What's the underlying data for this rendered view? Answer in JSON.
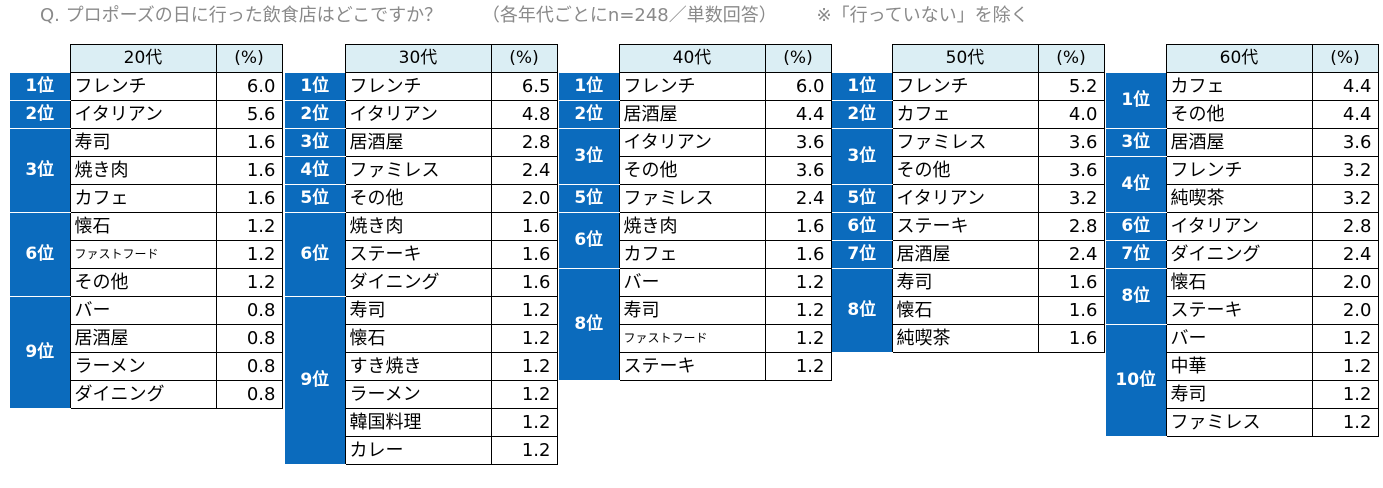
{
  "title": {
    "question": "Q. プロポーズの日に行った飲食店はどこですか？",
    "sample": "（各年代ごとにn=248／単数回答）",
    "note": "※「行っていない」を除く"
  },
  "percent_header": "(%)",
  "panels": [
    {
      "age": "20代",
      "rows": [
        {
          "rank": "1位",
          "span": 1,
          "name": "フレンチ",
          "value": "6.0"
        },
        {
          "rank": "2位",
          "span": 1,
          "name": "イタリアン",
          "value": "5.6"
        },
        {
          "rank": "3位",
          "span": 3,
          "name": "寿司",
          "value": "1.6"
        },
        {
          "name": "焼き肉",
          "value": "1.6"
        },
        {
          "name": "カフェ",
          "value": "1.6"
        },
        {
          "rank": "6位",
          "span": 3,
          "name": "懐石",
          "value": "1.2"
        },
        {
          "name": "ファストフード",
          "value": "1.2",
          "small": true
        },
        {
          "name": "その他",
          "value": "1.2"
        },
        {
          "rank": "9位",
          "span": 4,
          "name": "バー",
          "value": "0.8"
        },
        {
          "name": "居酒屋",
          "value": "0.8"
        },
        {
          "name": "ラーメン",
          "value": "0.8"
        },
        {
          "name": "ダイニング",
          "value": "0.8"
        }
      ]
    },
    {
      "age": "30代",
      "rows": [
        {
          "rank": "1位",
          "span": 1,
          "name": "フレンチ",
          "value": "6.5"
        },
        {
          "rank": "2位",
          "span": 1,
          "name": "イタリアン",
          "value": "4.8"
        },
        {
          "rank": "3位",
          "span": 1,
          "name": "居酒屋",
          "value": "2.8"
        },
        {
          "rank": "4位",
          "span": 1,
          "name": "ファミレス",
          "value": "2.4"
        },
        {
          "rank": "5位",
          "span": 1,
          "name": "その他",
          "value": "2.0"
        },
        {
          "rank": "6位",
          "span": 3,
          "name": "焼き肉",
          "value": "1.6"
        },
        {
          "name": "ステーキ",
          "value": "1.6"
        },
        {
          "name": "ダイニング",
          "value": "1.6"
        },
        {
          "rank": "9位",
          "span": 6,
          "name": "寿司",
          "value": "1.2"
        },
        {
          "name": "懐石",
          "value": "1.2"
        },
        {
          "name": "すき焼き",
          "value": "1.2"
        },
        {
          "name": "ラーメン",
          "value": "1.2"
        },
        {
          "name": "韓国料理",
          "value": "1.2"
        },
        {
          "name": "カレー",
          "value": "1.2"
        }
      ]
    },
    {
      "age": "40代",
      "rows": [
        {
          "rank": "1位",
          "span": 1,
          "name": "フレンチ",
          "value": "6.0"
        },
        {
          "rank": "2位",
          "span": 1,
          "name": "居酒屋",
          "value": "4.4"
        },
        {
          "rank": "3位",
          "span": 2,
          "name": "イタリアン",
          "value": "3.6"
        },
        {
          "name": "その他",
          "value": "3.6"
        },
        {
          "rank": "5位",
          "span": 1,
          "name": "ファミレス",
          "value": "2.4"
        },
        {
          "rank": "6位",
          "span": 2,
          "name": "焼き肉",
          "value": "1.6"
        },
        {
          "name": "カフェ",
          "value": "1.6"
        },
        {
          "rank": "8位",
          "span": 4,
          "name": "バー",
          "value": "1.2"
        },
        {
          "name": "寿司",
          "value": "1.2"
        },
        {
          "name": "ファストフード",
          "value": "1.2",
          "small": true
        },
        {
          "name": "ステーキ",
          "value": "1.2"
        }
      ]
    },
    {
      "age": "50代",
      "rows": [
        {
          "rank": "1位",
          "span": 1,
          "name": "フレンチ",
          "value": "5.2"
        },
        {
          "rank": "2位",
          "span": 1,
          "name": "カフェ",
          "value": "4.0"
        },
        {
          "rank": "3位",
          "span": 2,
          "name": "ファミレス",
          "value": "3.6"
        },
        {
          "name": "その他",
          "value": "3.6"
        },
        {
          "rank": "5位",
          "span": 1,
          "name": "イタリアン",
          "value": "3.2"
        },
        {
          "rank": "6位",
          "span": 1,
          "name": "ステーキ",
          "value": "2.8"
        },
        {
          "rank": "7位",
          "span": 1,
          "name": "居酒屋",
          "value": "2.4"
        },
        {
          "rank": "8位",
          "span": 3,
          "name": "寿司",
          "value": "1.6"
        },
        {
          "name": "懐石",
          "value": "1.6"
        },
        {
          "name": "純喫茶",
          "value": "1.6"
        }
      ]
    },
    {
      "age": "60代",
      "rows": [
        {
          "rank": "1位",
          "span": 2,
          "name": "カフェ",
          "value": "4.4"
        },
        {
          "name": "その他",
          "value": "4.4"
        },
        {
          "rank": "3位",
          "span": 1,
          "name": "居酒屋",
          "value": "3.6"
        },
        {
          "rank": "4位",
          "span": 2,
          "name": "フレンチ",
          "value": "3.2"
        },
        {
          "name": "純喫茶",
          "value": "3.2"
        },
        {
          "rank": "6位",
          "span": 1,
          "name": "イタリアン",
          "value": "2.8"
        },
        {
          "rank": "7位",
          "span": 1,
          "name": "ダイニング",
          "value": "2.4"
        },
        {
          "rank": "8位",
          "span": 2,
          "name": "懐石",
          "value": "2.0"
        },
        {
          "name": "ステーキ",
          "value": "2.0"
        },
        {
          "rank": "10位",
          "span": 4,
          "name": "バー",
          "value": "1.2"
        },
        {
          "name": "中華",
          "value": "1.2"
        },
        {
          "name": "寿司",
          "value": "1.2"
        },
        {
          "name": "ファミレス",
          "value": "1.2"
        }
      ]
    }
  ]
}
